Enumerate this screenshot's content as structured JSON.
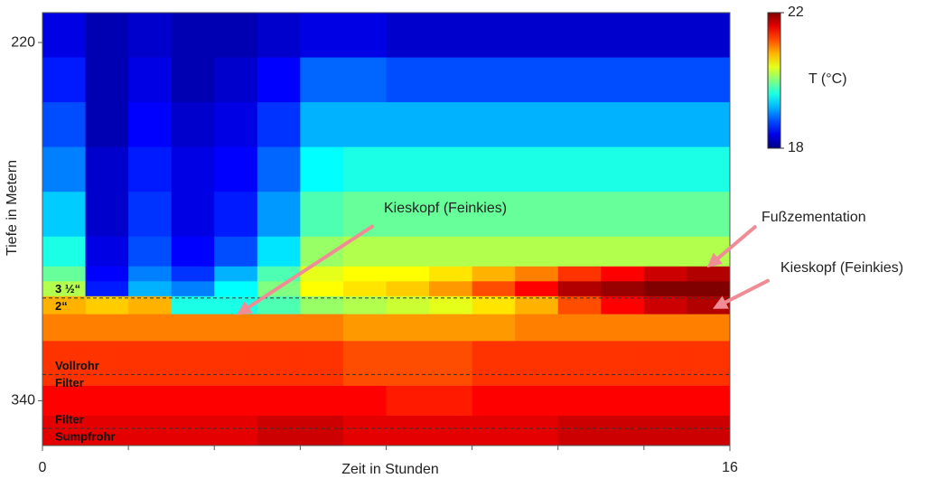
{
  "chart_data": {
    "type": "heatmap",
    "x_label": "Zeit in Stunden",
    "y_label": "Tiefe in Metern",
    "xlim": [
      0,
      16
    ],
    "xticks": [
      0,
      16
    ],
    "xminorticks": [
      2,
      4,
      6,
      8,
      10,
      12,
      14
    ],
    "ylim": [
      210,
      355
    ],
    "yticks": [
      220,
      340
    ],
    "y_inverted": true,
    "colormap": "jet",
    "colorbar": {
      "label": "T (°C)",
      "lim": [
        18,
        22
      ],
      "ticks": [
        18,
        22
      ]
    },
    "x_bins": [
      0,
      1,
      2,
      3,
      4,
      5,
      6,
      7,
      8,
      9,
      10,
      11,
      12,
      13,
      14,
      15,
      16
    ],
    "y_bins": [
      210,
      225,
      240,
      255,
      270,
      285,
      295,
      300,
      305,
      311,
      320,
      335,
      345,
      355
    ],
    "values": [
      [
        18.4,
        18.2,
        18.3,
        18.2,
        18.2,
        18.3,
        18.4,
        18.4,
        18.3,
        18.3,
        18.3,
        18.3,
        18.3,
        18.3,
        18.3,
        18.3
      ],
      [
        18.6,
        18.2,
        18.4,
        18.2,
        18.3,
        18.5,
        18.9,
        18.9,
        18.8,
        18.8,
        18.8,
        18.8,
        18.8,
        18.8,
        18.8,
        18.8
      ],
      [
        18.8,
        18.2,
        18.5,
        18.3,
        18.4,
        18.7,
        19.2,
        19.2,
        19.2,
        19.2,
        19.2,
        19.2,
        19.2,
        19.2,
        19.2,
        19.2
      ],
      [
        19.0,
        18.3,
        18.6,
        18.4,
        18.5,
        18.9,
        19.5,
        19.6,
        19.6,
        19.6,
        19.6,
        19.6,
        19.6,
        19.6,
        19.6,
        19.6
      ],
      [
        19.3,
        18.3,
        18.7,
        18.4,
        18.6,
        19.1,
        19.8,
        19.9,
        19.9,
        19.9,
        19.9,
        19.9,
        19.9,
        19.9,
        19.9,
        19.9
      ],
      [
        19.6,
        18.4,
        18.8,
        18.5,
        18.8,
        19.4,
        20.1,
        20.2,
        20.2,
        20.2,
        20.2,
        20.2,
        20.2,
        20.2,
        20.2,
        20.2
      ],
      [
        19.9,
        18.5,
        19.0,
        18.7,
        19.2,
        19.8,
        20.4,
        20.5,
        20.5,
        20.6,
        20.8,
        21.0,
        21.3,
        21.5,
        21.7,
        21.8
      ],
      [
        20.2,
        18.6,
        19.2,
        19.0,
        19.5,
        20.0,
        20.5,
        20.6,
        20.7,
        20.9,
        21.2,
        21.5,
        21.8,
        21.9,
        22.0,
        22.0
      ],
      [
        20.8,
        20.7,
        20.8,
        19.6,
        19.6,
        19.8,
        20.1,
        20.2,
        20.3,
        20.4,
        20.6,
        20.8,
        21.2,
        21.5,
        21.7,
        21.8
      ],
      [
        21.0,
        21.0,
        21.0,
        21.0,
        21.0,
        21.0,
        21.0,
        20.9,
        20.9,
        20.9,
        20.9,
        21.0,
        21.0,
        21.0,
        21.0,
        21.0
      ],
      [
        21.3,
        21.3,
        21.3,
        21.3,
        21.3,
        21.3,
        21.3,
        21.2,
        21.2,
        21.2,
        21.3,
        21.3,
        21.3,
        21.3,
        21.3,
        21.3
      ],
      [
        21.5,
        21.5,
        21.5,
        21.5,
        21.5,
        21.5,
        21.5,
        21.5,
        21.4,
        21.4,
        21.5,
        21.5,
        21.5,
        21.5,
        21.5,
        21.5
      ],
      [
        21.6,
        21.6,
        21.6,
        21.6,
        21.6,
        21.7,
        21.7,
        21.6,
        21.6,
        21.6,
        21.6,
        21.6,
        21.7,
        21.7,
        21.7,
        21.7
      ]
    ],
    "boundaries": [
      {
        "y": 305.6,
        "above": "3 ½“",
        "below": "2“"
      },
      {
        "y": 331.2,
        "above": "Vollrohr",
        "below": "Filter"
      },
      {
        "y": 349.3,
        "above": "Filter",
        "below": "Sumpfrohr"
      }
    ],
    "annotations": [
      {
        "text": "Kieskopf (Feinkies)",
        "x": 4.52,
        "y": 311.3
      },
      {
        "text": "Fußzementation",
        "x": 15.47,
        "y": 295.4
      },
      {
        "text": "Kieskopf (Feinkies)",
        "x": 15.6,
        "y": 309.2
      }
    ],
    "arrow_color": "#f08c96"
  }
}
